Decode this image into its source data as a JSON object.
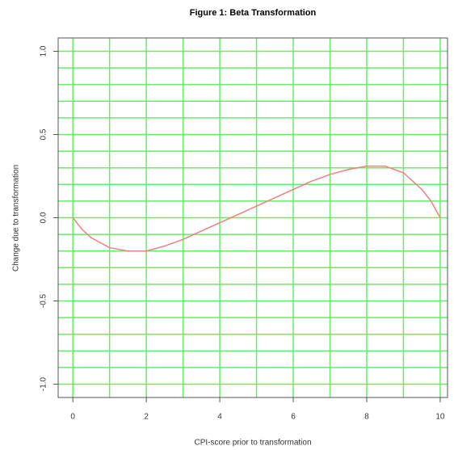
{
  "chart_data": {
    "type": "line",
    "title": "Figure 1: Beta Transformation",
    "x_label": "CPI-score prior to transformation",
    "y_label": "Change due to transformation",
    "x": [
      0,
      0.25,
      0.5,
      1,
      1.5,
      2,
      2.5,
      3,
      3.5,
      4,
      4.5,
      5,
      5.5,
      6,
      6.5,
      7,
      7.5,
      8,
      8.5,
      9,
      9.5,
      9.75,
      10
    ],
    "series": [
      {
        "color": "#f08080",
        "values": [
          0,
          -0.07,
          -0.12,
          -0.18,
          -0.2,
          -0.2,
          -0.17,
          -0.13,
          -0.08,
          -0.03,
          0.02,
          0.07,
          0.12,
          0.17,
          0.22,
          0.26,
          0.29,
          0.31,
          0.31,
          0.27,
          0.17,
          0.1,
          0
        ]
      }
    ],
    "xlim": [
      -0.4,
      10.2
    ],
    "ylim": [
      -1.08,
      1.08
    ],
    "xticks": [
      0,
      2,
      4,
      6,
      8,
      10
    ],
    "yticks": [
      {
        "value": -1,
        "label": "-1.0"
      },
      -0.5,
      {
        "value": 0,
        "label": "0.0"
      },
      0.5,
      {
        "value": 1,
        "label": "1.0"
      }
    ],
    "grid": true,
    "grid_color": "#66ee66",
    "xgrid": [
      0,
      1,
      2,
      3,
      4,
      5,
      6,
      7,
      8,
      9,
      10
    ],
    "ygrid": [
      -1,
      -0.9,
      -0.8,
      -0.7,
      -0.6,
      -0.5,
      -0.4,
      -0.3,
      -0.2,
      -0.1,
      0,
      0.1,
      0.2,
      0.3,
      0.4,
      0.5,
      0.6,
      0.7,
      0.8,
      0.9,
      1
    ]
  }
}
